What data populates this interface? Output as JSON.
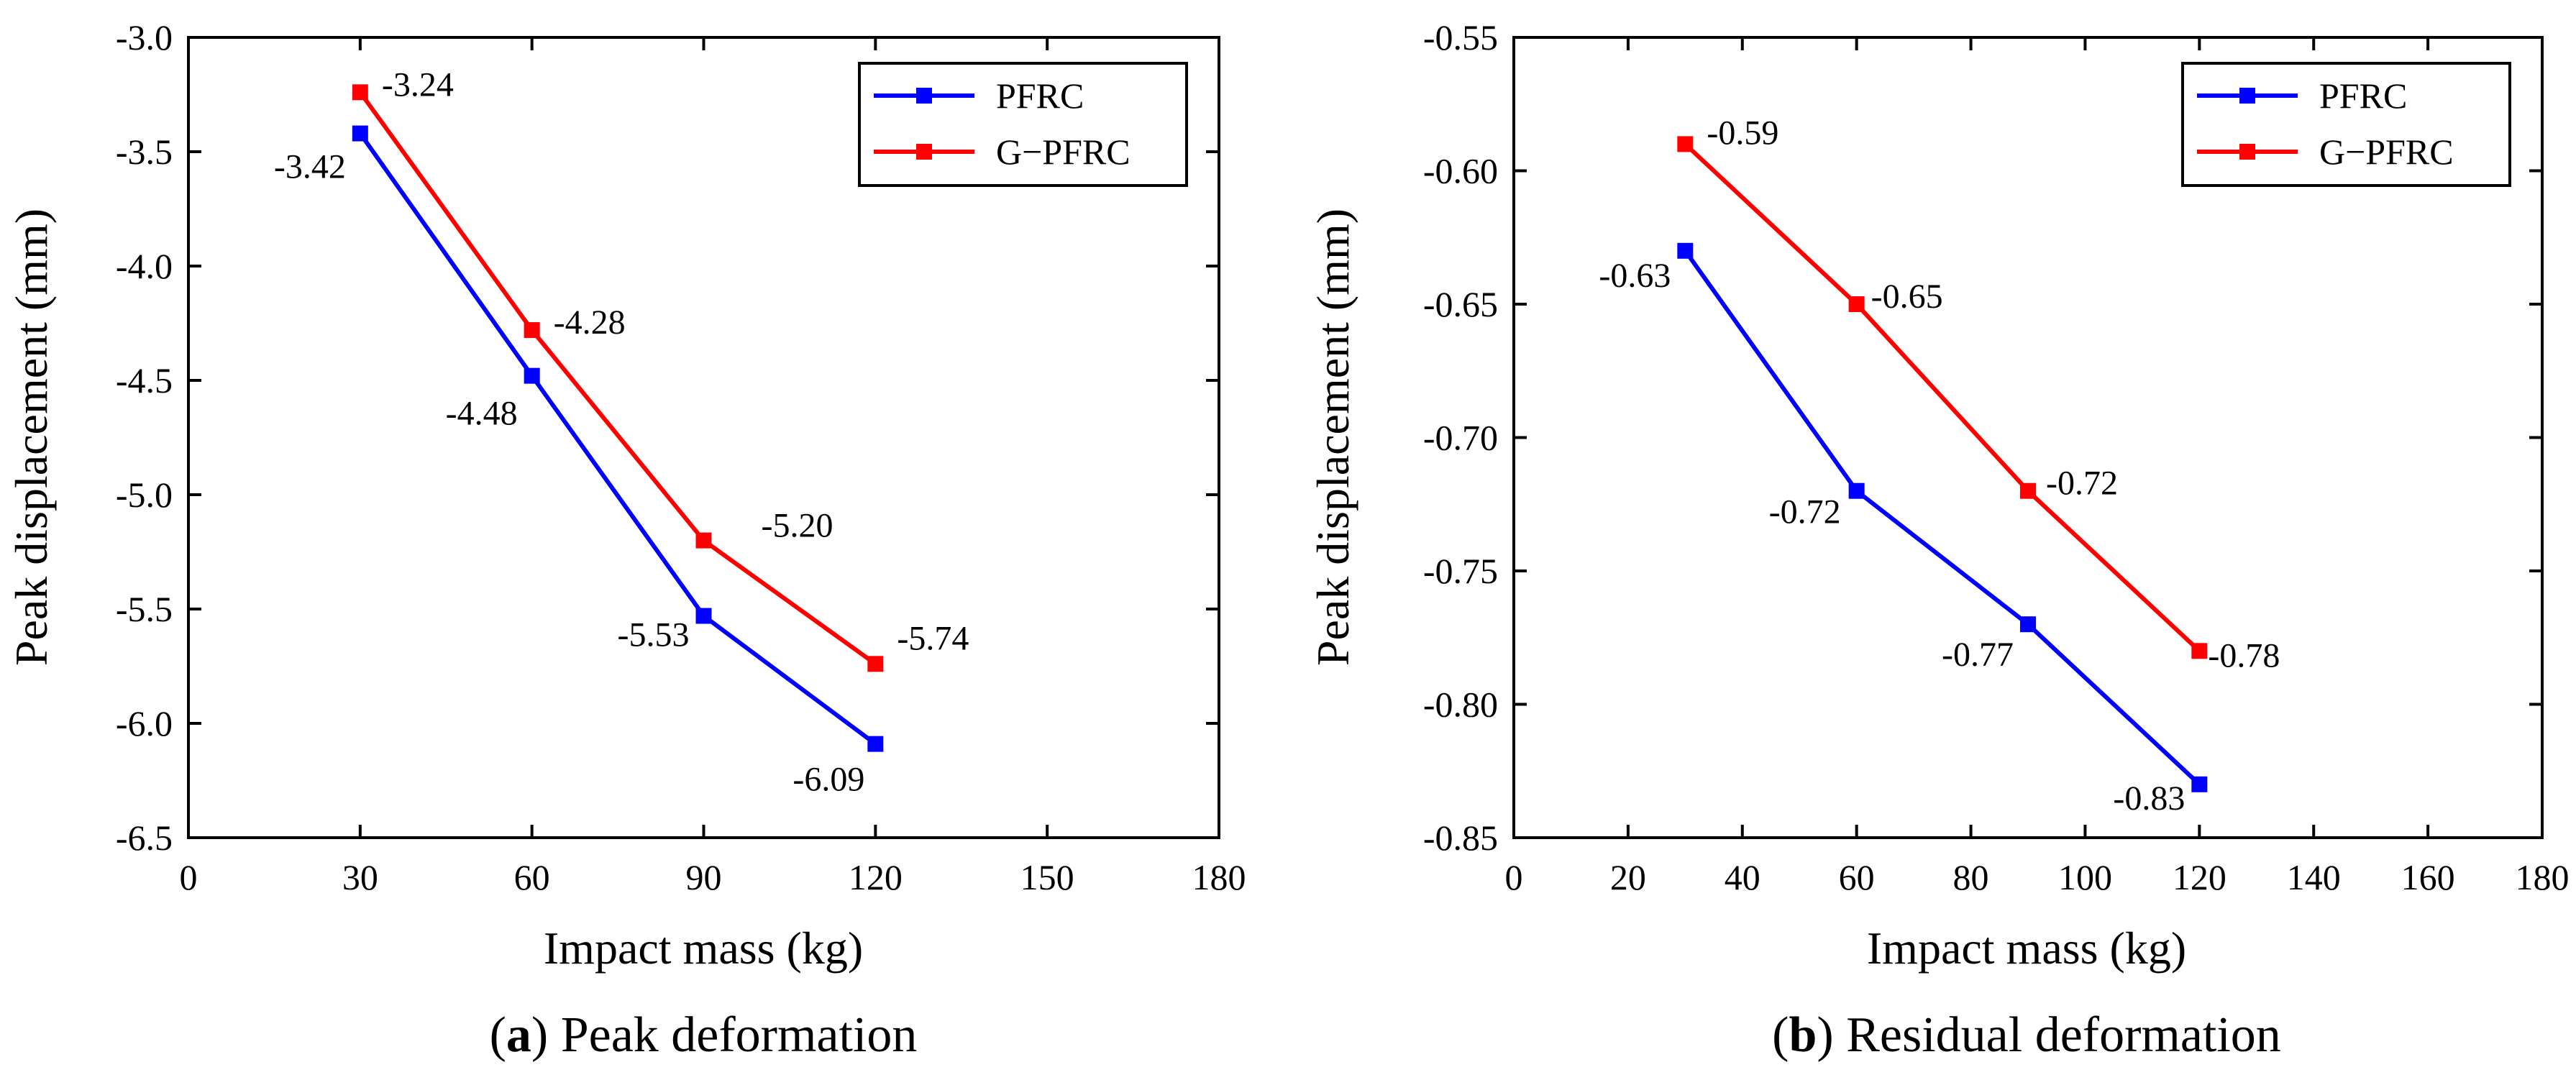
{
  "colors": {
    "pfrc": "#0000ff",
    "gpfrc": "#ff0000",
    "axis": "#000000",
    "background": "#ffffff"
  },
  "chart_data": [
    {
      "type": "line",
      "panel_letter": "a",
      "caption_text": " Peak deformation",
      "xlabel": "Impact mass (kg)",
      "ylabel": "Peak displacement (mm)",
      "xlim": [
        0,
        180
      ],
      "ylim": [
        -6.5,
        -3.0
      ],
      "xticks": [
        "0",
        "30",
        "60",
        "90",
        "120",
        "150",
        "180"
      ],
      "yticks": [
        "-3.0",
        "-3.5",
        "-4.0",
        "-4.5",
        "-5.0",
        "-5.5",
        "-6.0",
        "-6.5"
      ],
      "grid": false,
      "legend_position": "top-right",
      "x": [
        30,
        60,
        90,
        120
      ],
      "series": [
        {
          "name": "PFRC",
          "color": "#0000ff",
          "values": [
            -3.42,
            -4.48,
            -5.53,
            -6.09
          ],
          "labels": [
            "-3.42",
            "-4.48",
            "-5.53",
            "-6.09"
          ]
        },
        {
          "name": "G−PFRC",
          "color": "#ff0000",
          "values": [
            -3.24,
            -4.28,
            -5.2,
            -5.74
          ],
          "labels": [
            "-3.24",
            "-4.28",
            "-5.20",
            "-5.74"
          ]
        }
      ]
    },
    {
      "type": "line",
      "panel_letter": "b",
      "caption_text": " Residual deformation",
      "xlabel": "Impact mass (kg)",
      "ylabel": "Peak displacement (mm)",
      "xlim": [
        0,
        180
      ],
      "ylim": [
        -0.85,
        -0.55
      ],
      "xticks": [
        "0",
        "20",
        "40",
        "60",
        "80",
        "100",
        "120",
        "140",
        "160",
        "180"
      ],
      "yticks": [
        "-0.55",
        "-0.60",
        "-0.65",
        "-0.70",
        "-0.75",
        "-0.80",
        "-0.85"
      ],
      "grid": false,
      "legend_position": "top-right",
      "x": [
        30,
        60,
        90,
        120
      ],
      "series": [
        {
          "name": "PFRC",
          "color": "#0000ff",
          "values": [
            -0.63,
            -0.72,
            -0.77,
            -0.83
          ],
          "labels": [
            "-0.63",
            "-0.72",
            "-0.77",
            "-0.83"
          ]
        },
        {
          "name": "G−PFRC",
          "color": "#ff0000",
          "values": [
            -0.59,
            -0.65,
            -0.72,
            -0.78
          ],
          "labels": [
            "-0.59",
            "-0.65",
            "-0.72",
            "-0.78"
          ]
        }
      ]
    }
  ]
}
